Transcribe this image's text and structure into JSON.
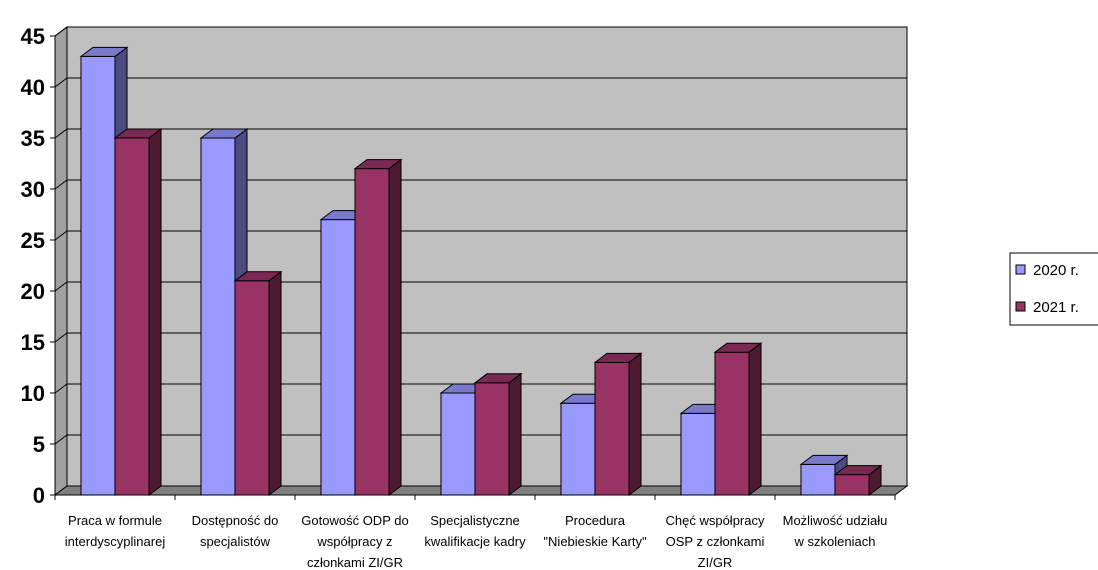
{
  "chart_data": {
    "type": "bar",
    "categories": [
      [
        "Praca w formule",
        "interdyscyplinarej"
      ],
      [
        "Dostępność do",
        "specjalistów"
      ],
      [
        "Gotowość ODP do",
        "współpracy z",
        "członkami ZI/GR"
      ],
      [
        "Specjalistyczne",
        "kwalifikacje kadry"
      ],
      [
        "Procedura",
        "\"Niebieskie Karty\""
      ],
      [
        "Chęć współpracy",
        "OSP z członkami",
        "ZI/GR"
      ],
      [
        "Możliwość udziału",
        "w szkoleniach"
      ]
    ],
    "series": [
      {
        "name": "2020 r.",
        "values": [
          43,
          35,
          27,
          10,
          9,
          8,
          3
        ],
        "color": "#9999ff",
        "side_color": "#4c4c80",
        "top_color": "#7a7acc"
      },
      {
        "name": "2021 r.",
        "values": [
          35,
          21,
          32,
          11,
          13,
          14,
          2
        ],
        "color": "#993366",
        "side_color": "#4c1a33",
        "top_color": "#7a2952"
      }
    ],
    "ylim": [
      0,
      45
    ],
    "yticks": [
      0,
      5,
      10,
      15,
      20,
      25,
      30,
      35,
      40,
      45
    ],
    "grid": true,
    "plot_background": "#c0c0c0",
    "legend_position": "right"
  }
}
